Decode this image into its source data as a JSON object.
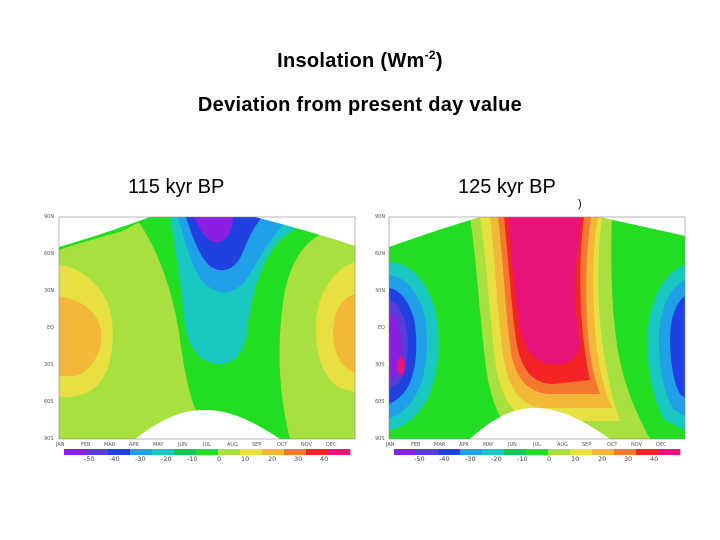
{
  "title": {
    "line1_main": "Insolation (Wm",
    "line1_sup": "-2",
    "line1_end": ")",
    "line2": "Deviation from present day value"
  },
  "stray_mark": ")",
  "chart_data": [
    {
      "type": "heatmap",
      "title": "115 kyr BP",
      "x_tick_labels": [
        "JAN",
        "FEB",
        "MAR",
        "APR",
        "MAY",
        "JUN",
        "JUL",
        "AUG",
        "SEP",
        "OCT",
        "NOV",
        "DEC"
      ],
      "y_tick_labels": [
        "90N",
        "60N",
        "30N",
        "EQ",
        "30S",
        "60S",
        "90S"
      ],
      "colorbar_ticks": [
        "-50",
        "-40",
        "-30",
        "-20",
        "-10",
        "0",
        "10",
        "20",
        "30",
        "40"
      ],
      "colorbar_colors": [
        "#8a1fe0",
        "#5a3ad8",
        "#2040e0",
        "#1fa0e8",
        "#18c8c0",
        "#10c858",
        "#22dd22",
        "#a8e040",
        "#e6e040",
        "#f4b838",
        "#f47830",
        "#f42424",
        "#e8147a"
      ]
    },
    {
      "type": "heatmap",
      "title": "125 kyr BP",
      "x_tick_labels": [
        "JAN",
        "FEB",
        "MAR",
        "APR",
        "MAY",
        "JUN",
        "JUL",
        "AUG",
        "SEP",
        "OCT",
        "NOV",
        "DEC"
      ],
      "y_tick_labels": [
        "90N",
        "60N",
        "30N",
        "EQ",
        "30S",
        "60S",
        "90S"
      ],
      "colorbar_ticks": [
        "-50",
        "-40",
        "-30",
        "-20",
        "-10",
        "0",
        "10",
        "20",
        "30",
        "40"
      ],
      "colorbar_colors": [
        "#8a1fe0",
        "#5a3ad8",
        "#2040e0",
        "#1fa0e8",
        "#18c8c0",
        "#10c858",
        "#22dd22",
        "#a8e040",
        "#e6e040",
        "#f4b838",
        "#f47830",
        "#f42424",
        "#e8147a"
      ]
    }
  ]
}
